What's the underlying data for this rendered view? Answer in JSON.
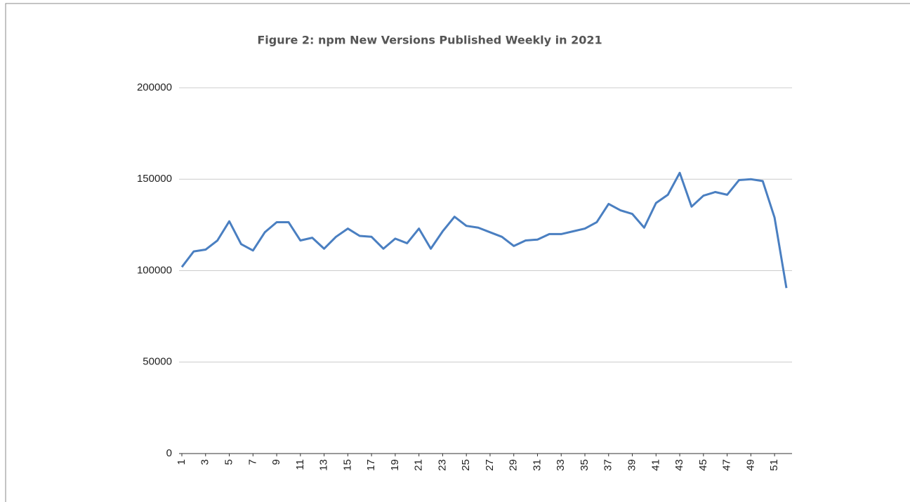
{
  "chart_data": {
    "type": "line",
    "title": "Figure 2: npm New Versions Published Weekly in 2021",
    "x": [
      1,
      2,
      3,
      4,
      5,
      6,
      7,
      8,
      9,
      10,
      11,
      12,
      13,
      14,
      15,
      16,
      17,
      18,
      19,
      20,
      21,
      22,
      23,
      24,
      25,
      26,
      27,
      28,
      29,
      30,
      31,
      32,
      33,
      34,
      35,
      36,
      37,
      38,
      39,
      40,
      41,
      42,
      43,
      44,
      45,
      46,
      47,
      48,
      49,
      50,
      51,
      52
    ],
    "series": [
      {
        "name": "New Versions",
        "color": "#4a7fc1",
        "values": [
          102000,
          110500,
          111500,
          116500,
          127000,
          114500,
          111000,
          121000,
          126500,
          126500,
          116500,
          118000,
          112000,
          118500,
          123000,
          119000,
          118500,
          112000,
          117500,
          115000,
          123000,
          112000,
          121500,
          129500,
          124500,
          123500,
          121000,
          118500,
          113500,
          116500,
          117000,
          120000,
          120000,
          121500,
          123000,
          126500,
          136500,
          133000,
          131000,
          123500,
          137000,
          141500,
          153500,
          135000,
          141000,
          143000,
          141500,
          149500,
          150000,
          149000,
          129000,
          90500
        ]
      }
    ],
    "xlim": [
      1,
      52
    ],
    "xticks": [
      1,
      3,
      5,
      7,
      9,
      11,
      13,
      15,
      17,
      19,
      21,
      23,
      25,
      27,
      29,
      31,
      33,
      35,
      37,
      39,
      41,
      43,
      45,
      47,
      49,
      51
    ],
    "ylim": [
      0,
      200000
    ],
    "yticks": [
      0,
      50000,
      100000,
      150000,
      200000
    ],
    "grid": true
  }
}
